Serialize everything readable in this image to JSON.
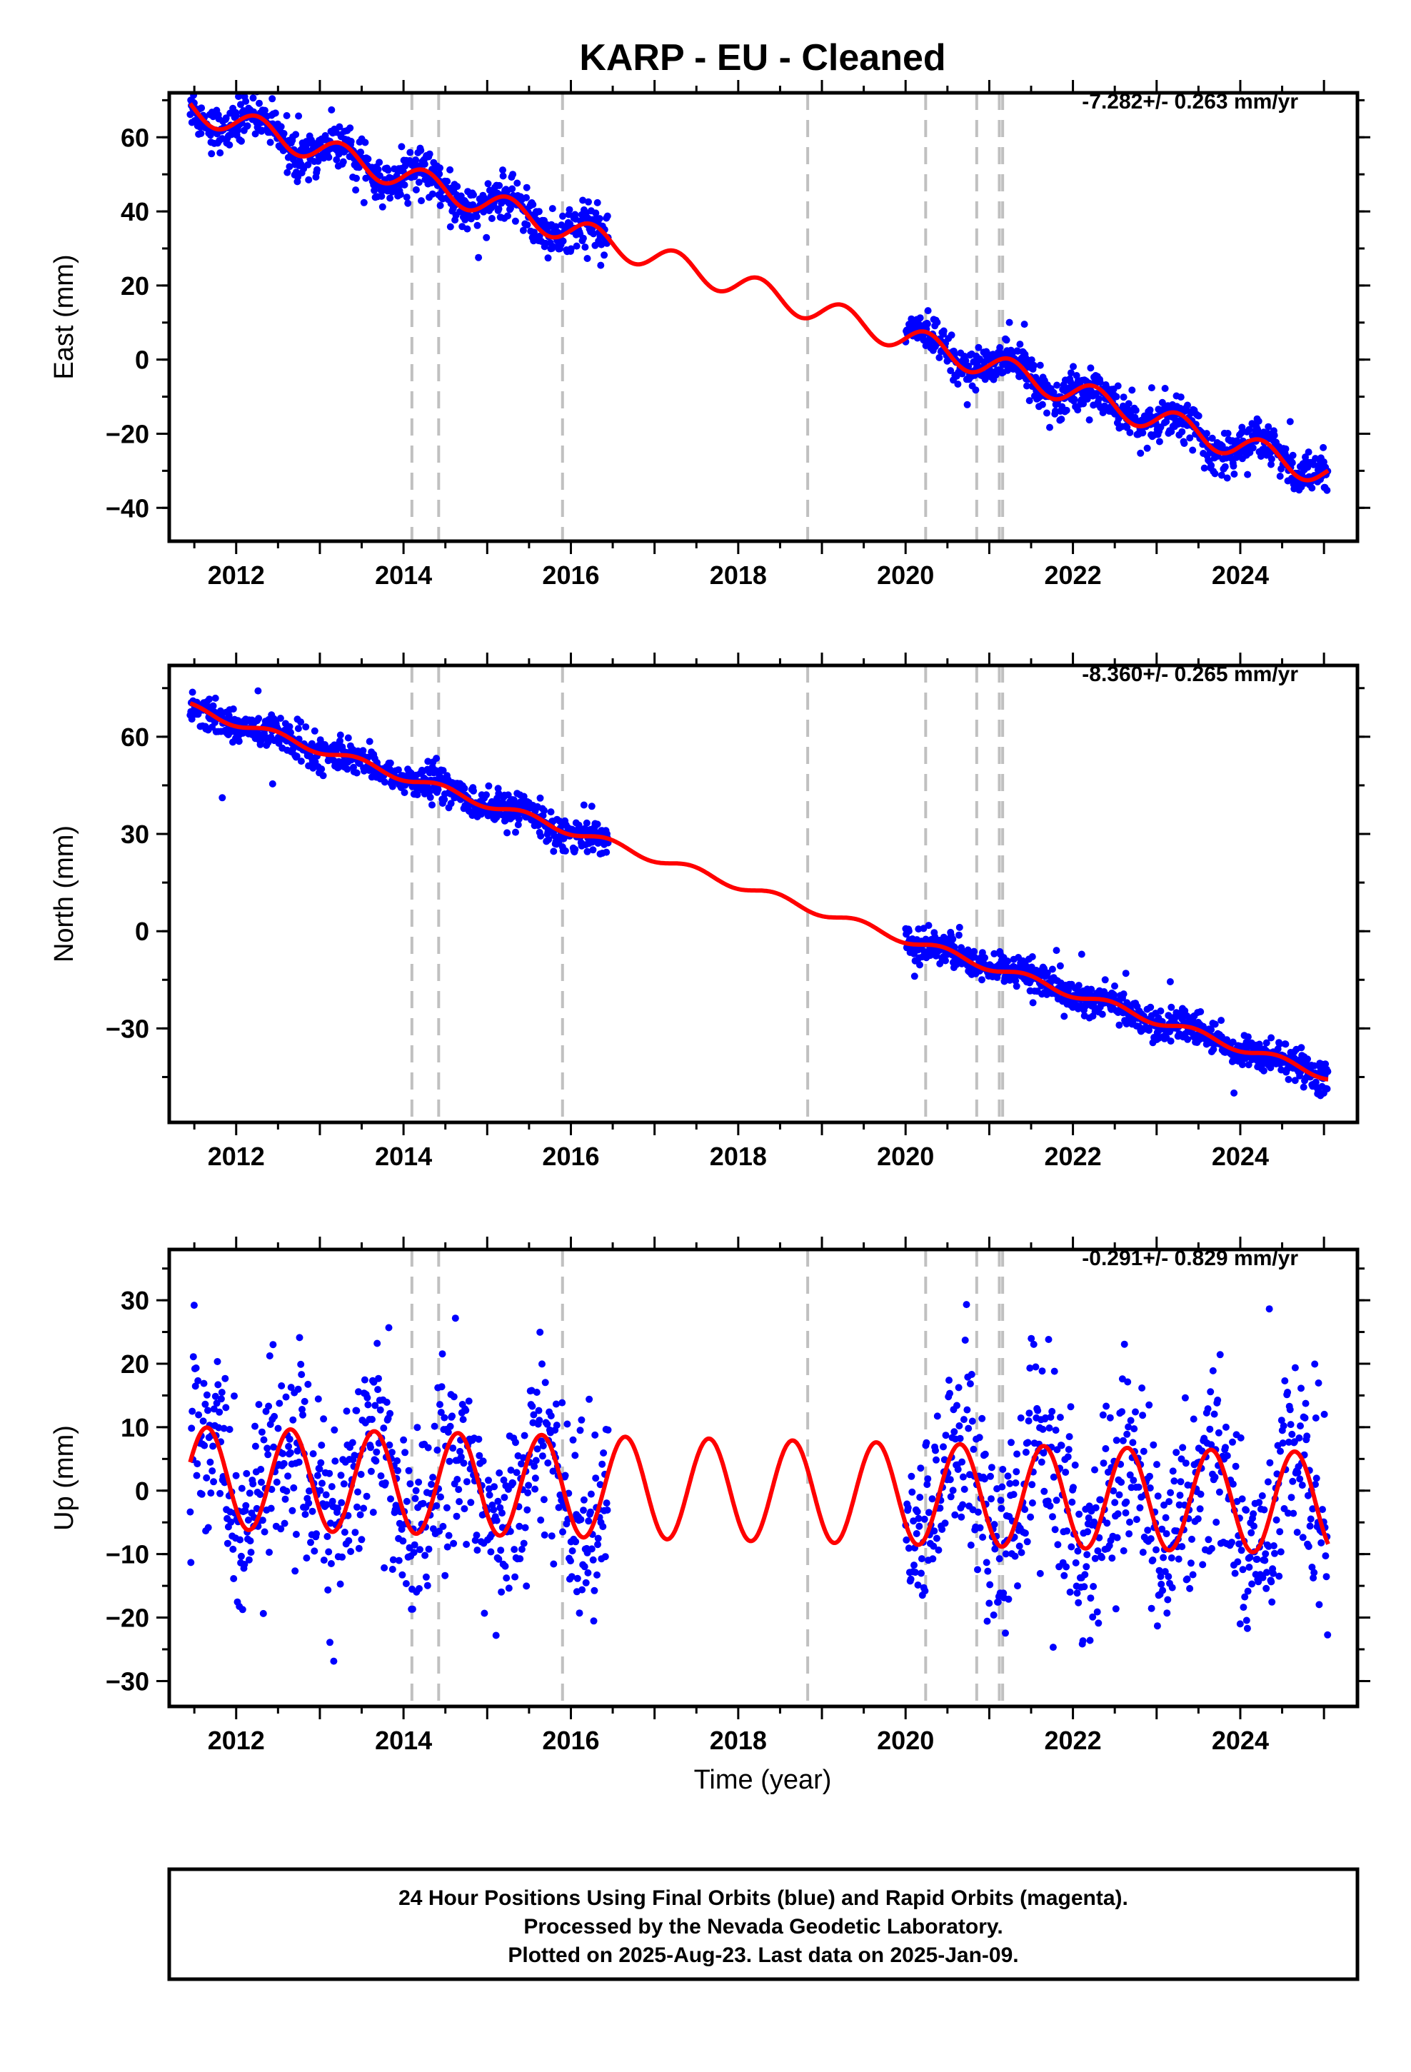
{
  "title": "KARP  - EU - Cleaned",
  "xlabel": "Time (year)",
  "footer": {
    "line1": "24 Hour Positions Using Final Orbits (blue) and Rapid Orbits (magenta).",
    "line2": "Processed by the Nevada Geodetic Laboratory.",
    "line3": "Plotted on 2025-Aug-23. Last data on 2025-Jan-09."
  },
  "colors": {
    "points": "#0000ff",
    "model": "#ff0000",
    "steps": "#c0c0c0"
  },
  "chart_data": [
    {
      "type": "scatter",
      "component": "East",
      "ylabel": "East (mm)",
      "rate_label": "-7.282+/- 0.263 mm/yr",
      "xlim": [
        2011.2,
        2025.4
      ],
      "ylim": [
        -49,
        72
      ],
      "xticks": [
        2012,
        2014,
        2016,
        2018,
        2020,
        2022,
        2024
      ],
      "yticks": [
        -40,
        -20,
        0,
        20,
        40,
        60
      ],
      "step_epochs": [
        2014.1,
        2014.42,
        2015.9,
        2018.83,
        2020.24,
        2020.85,
        2021.12,
        2021.16
      ],
      "model": {
        "t0": 2011.45,
        "t_end": 2025.05,
        "rate": -7.282,
        "offset": 68,
        "amp": 3.5,
        "phase": 2011.0,
        "data_ranges": [
          [
            2011.45,
            2016.45
          ],
          [
            2020.0,
            2025.05
          ]
        ],
        "noise": 2.8,
        "count": 1500
      }
    },
    {
      "type": "scatter",
      "component": "North",
      "ylabel": "North (mm)",
      "rate_label": "-8.360+/- 0.265 mm/yr",
      "xlim": [
        2011.2,
        2025.4
      ],
      "ylim": [
        -59,
        82
      ],
      "xticks": [
        2012,
        2014,
        2016,
        2018,
        2020,
        2022,
        2024
      ],
      "yticks": [
        -30,
        0,
        30,
        60
      ],
      "step_epochs": [
        2014.1,
        2014.42,
        2015.9,
        2018.83,
        2020.24,
        2020.85,
        2021.12,
        2021.16
      ],
      "model": {
        "t0": 2011.45,
        "t_end": 2025.05,
        "rate": -8.36,
        "offset": 69,
        "amp": 1.3,
        "phase": 2011.2,
        "data_ranges": [
          [
            2011.45,
            2016.45
          ],
          [
            2020.0,
            2025.05
          ]
        ],
        "noise": 2.6,
        "count": 1500
      }
    },
    {
      "type": "scatter",
      "component": "Up",
      "ylabel": "Up (mm)",
      "rate_label": "-0.291+/- 0.829 mm/yr",
      "xlim": [
        2011.2,
        2025.4
      ],
      "ylim": [
        -34,
        38
      ],
      "xticks": [
        2012,
        2014,
        2016,
        2018,
        2020,
        2022,
        2024
      ],
      "yticks": [
        -30,
        -20,
        -10,
        0,
        10,
        20,
        30
      ],
      "step_epochs": [
        2014.1,
        2014.42,
        2015.9,
        2018.83,
        2020.24,
        2020.85,
        2021.12,
        2021.16
      ],
      "model": {
        "t0": 2011.45,
        "t_end": 2025.05,
        "rate": -0.291,
        "offset": 2,
        "amp": 8,
        "phase": 2011.4,
        "data_ranges": [
          [
            2011.45,
            2016.45
          ],
          [
            2020.0,
            2025.05
          ]
        ],
        "noise": 7.5,
        "count": 1300
      }
    }
  ]
}
